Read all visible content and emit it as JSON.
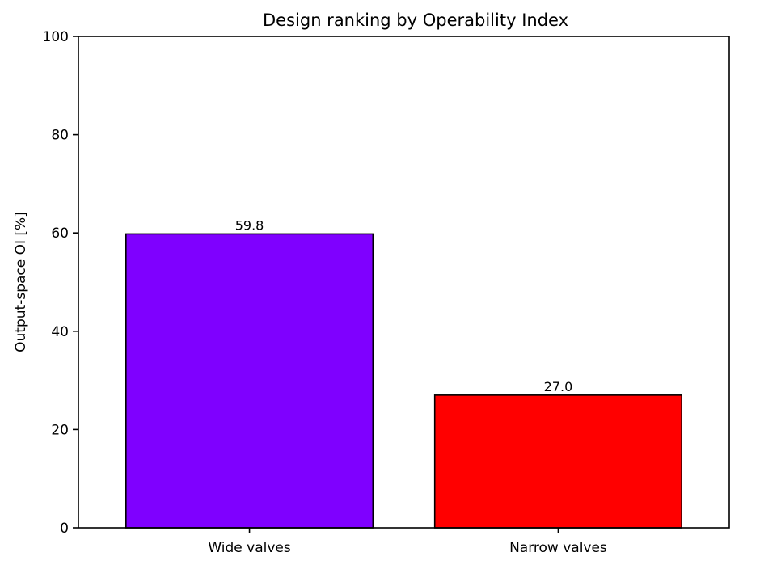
{
  "chart_data": {
    "type": "bar",
    "title": "Design ranking by Operability Index",
    "xlabel": "",
    "ylabel": "Output-space OI [%]",
    "categories": [
      "Wide valves",
      "Narrow valves"
    ],
    "values": [
      59.8,
      27.0
    ],
    "data_labels": [
      "59.8",
      "27.0"
    ],
    "bar_colors": [
      "#7f00ff",
      "#ff0000"
    ],
    "edge_color": "#000000",
    "ylim": [
      0,
      100
    ],
    "yticks": [
      0,
      20,
      40,
      60,
      80,
      100
    ],
    "grid": false,
    "legend": "none"
  }
}
